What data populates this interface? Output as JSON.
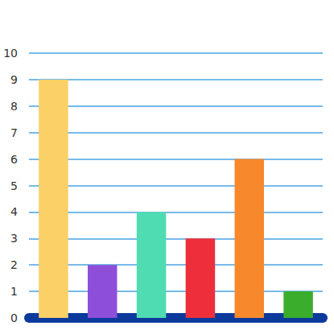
{
  "chart_data": {
    "type": "bar",
    "categories": [
      null,
      null,
      null,
      null,
      null,
      null
    ],
    "values": [
      9,
      2,
      4,
      3,
      6,
      1
    ],
    "colors": [
      "#fbd067",
      "#8e4fd8",
      "#4fdcb2",
      "#ec2f3a",
      "#f7892c",
      "#3aae2c"
    ],
    "ylim": [
      0,
      10
    ],
    "yticks": [
      0,
      1,
      2,
      3,
      4,
      5,
      6,
      7,
      8,
      9,
      10
    ],
    "grid": true
  }
}
